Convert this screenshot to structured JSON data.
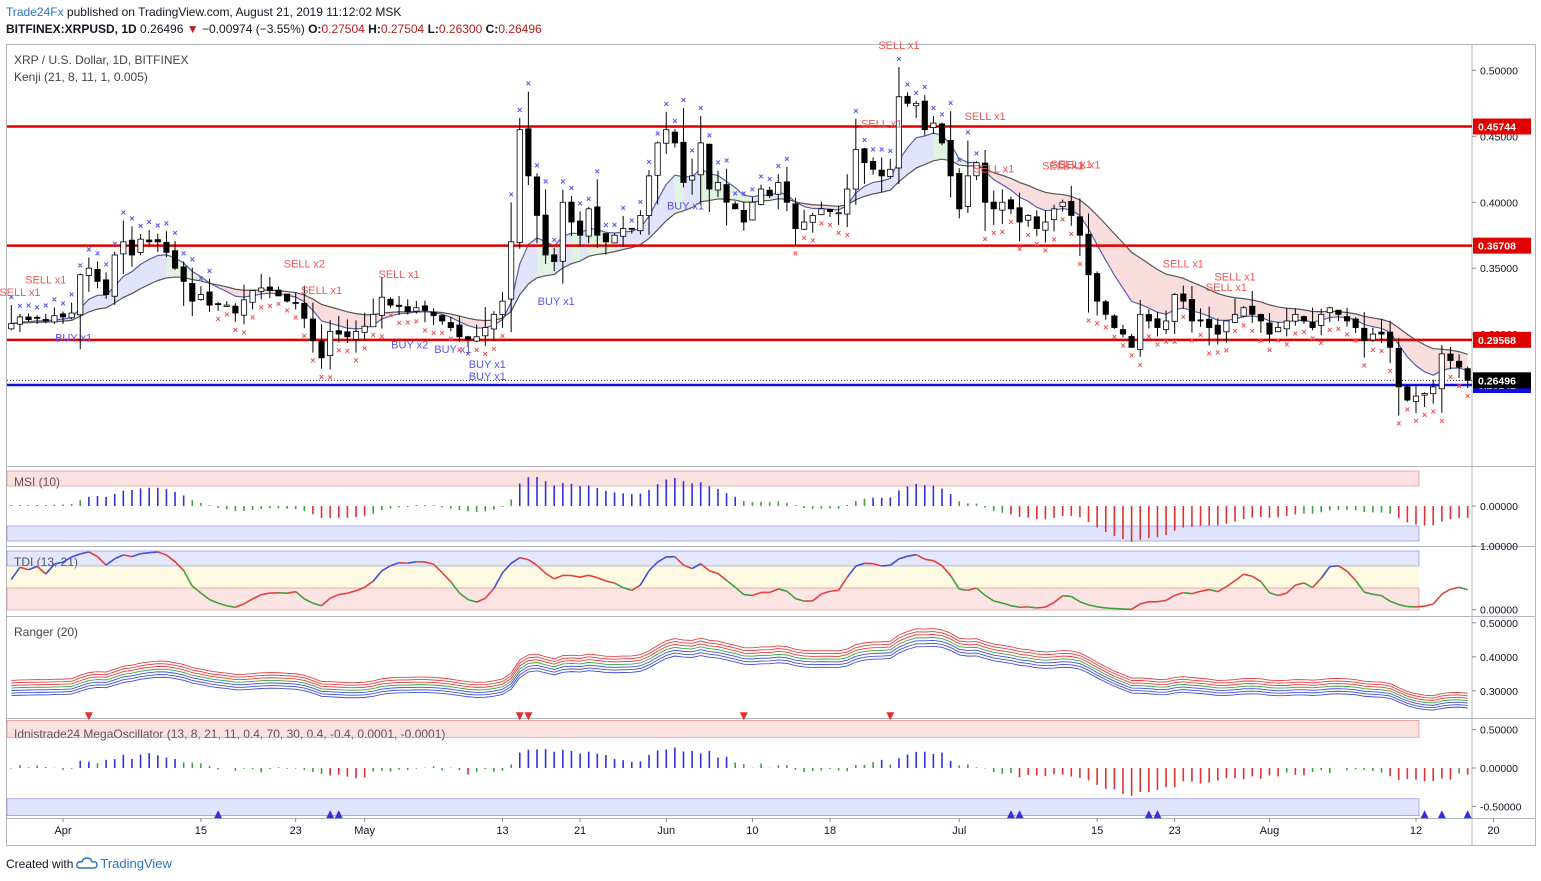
{
  "header": {
    "brand": "Trade24Fx",
    "published": " published on TradingView.com, August 21, 2019 11:12:02 MSK",
    "symbol": "BITFINEX:XRPUSD, 1D",
    "last": "0.26496",
    "change": "−0.00974 (−3.55%)",
    "o_label": "O:",
    "o": "0.27504",
    "h_label": "H:",
    "h": "0.27504",
    "l_label": "L:",
    "l": "0.26300",
    "c_label": "C:",
    "c": "0.26496"
  },
  "footer": {
    "created": "Created with",
    "tv": "TradingView"
  },
  "colors": {
    "up": "#ffffff",
    "down": "#000000",
    "level": "#e00000",
    "support": "#1010e0",
    "buy": "#5555ee",
    "sell": "#ee5555",
    "fast_ma": "#5560a8",
    "slow_ma": "#555555"
  },
  "chart_data": [
    {
      "type": "candlestick",
      "title": "XRP / U.S. Dollar, 1D, BITFINEX",
      "indicator": "Kenji (21, 8, 11, 1, 0.005)",
      "x_ticks": [
        "Apr",
        "15",
        "23",
        "May",
        "13",
        "21",
        "Jun",
        "10",
        "18",
        "Jul",
        "15",
        "23",
        "Aug",
        "12",
        "20"
      ],
      "ylim": [
        0.2,
        0.52
      ],
      "y_ticks": [
        0.5,
        0.45,
        0.4,
        0.35,
        0.3
      ],
      "y_tick_labels": [
        "0.50000",
        "0.45000",
        "0.40000",
        "0.35000",
        "0.30000"
      ],
      "levels": [
        {
          "value": 0.45744,
          "label": "0.45744",
          "kind": "resistance"
        },
        {
          "value": 0.36708,
          "label": "0.36708",
          "kind": "resistance"
        },
        {
          "value": 0.29568,
          "label": "0.29568",
          "kind": "resistance"
        },
        {
          "value": 0.26141,
          "label": "0.26141",
          "kind": "support"
        }
      ],
      "last_price": {
        "value": 0.26496,
        "label": "0.26496"
      },
      "closes": [
        0.308,
        0.313,
        0.311,
        0.312,
        0.31,
        0.314,
        0.313,
        0.316,
        0.345,
        0.35,
        0.34,
        0.33,
        0.36,
        0.37,
        0.36,
        0.372,
        0.37,
        0.37,
        0.362,
        0.35,
        0.34,
        0.325,
        0.33,
        0.322,
        0.323,
        0.322,
        0.316,
        0.326,
        0.333,
        0.335,
        0.333,
        0.329,
        0.325,
        0.324,
        0.312,
        0.295,
        0.282,
        0.302,
        0.3,
        0.298,
        0.302,
        0.306,
        0.315,
        0.328,
        0.322,
        0.321,
        0.317,
        0.32,
        0.318,
        0.314,
        0.31,
        0.305,
        0.298,
        0.296,
        0.298,
        0.305,
        0.315,
        0.325,
        0.37,
        0.455,
        0.42,
        0.39,
        0.36,
        0.355,
        0.4,
        0.385,
        0.375,
        0.395,
        0.375,
        0.37,
        0.375,
        0.38,
        0.38,
        0.39,
        0.42,
        0.445,
        0.455,
        0.445,
        0.415,
        0.42,
        0.445,
        0.41,
        0.415,
        0.4,
        0.395,
        0.385,
        0.4,
        0.41,
        0.405,
        0.415,
        0.4,
        0.38,
        0.385,
        0.39,
        0.395,
        0.393,
        0.392,
        0.41,
        0.44,
        0.43,
        0.425,
        0.42,
        0.425,
        0.48,
        0.475,
        0.475,
        0.455,
        0.46,
        0.445,
        0.42,
        0.395,
        0.42,
        0.43,
        0.4,
        0.395,
        0.4,
        0.395,
        0.385,
        0.39,
        0.38,
        0.385,
        0.395,
        0.4,
        0.39,
        0.375,
        0.345,
        0.325,
        0.315,
        0.305,
        0.3,
        0.29,
        0.315,
        0.31,
        0.305,
        0.31,
        0.33,
        0.325,
        0.31,
        0.31,
        0.305,
        0.3,
        0.31,
        0.315,
        0.32,
        0.315,
        0.31,
        0.3,
        0.305,
        0.31,
        0.315,
        0.31,
        0.305,
        0.315,
        0.32,
        0.315,
        0.31,
        0.305,
        0.295,
        0.3,
        0.3,
        0.29,
        0.26,
        0.25,
        0.253,
        0.255,
        0.26,
        0.285,
        0.28,
        0.275,
        0.265
      ],
      "buy_signals": [
        {
          "day": 7,
          "label": "BUY x1"
        },
        {
          "day": 46,
          "label": "BUY x2"
        },
        {
          "day": 51,
          "label": "BUY x1"
        },
        {
          "day": 55,
          "label": "BUY x1"
        },
        {
          "day": 55,
          "label": "BUY x1"
        },
        {
          "day": 63,
          "label": "BUY x1"
        },
        {
          "day": 78,
          "label": "BUY x1"
        }
      ],
      "sell_signals": [
        {
          "day": 1,
          "label": "SELL x1"
        },
        {
          "day": 4,
          "label": "SELL x1"
        },
        {
          "day": 34,
          "label": "SELL x2"
        },
        {
          "day": 36,
          "label": "SELL x1"
        },
        {
          "day": 45,
          "label": "SELL x1"
        },
        {
          "day": 101,
          "label": "SELL x1"
        },
        {
          "day": 103,
          "label": "SELL x1"
        },
        {
          "day": 113,
          "label": "SELL x1"
        },
        {
          "day": 114,
          "label": "SELL x1"
        },
        {
          "day": 122,
          "label": "SELL x1"
        },
        {
          "day": 123,
          "label": "SELL x1"
        },
        {
          "day": 124,
          "label": "SELL x1"
        },
        {
          "day": 136,
          "label": "SELL x1"
        },
        {
          "day": 141,
          "label": "SELL x1"
        },
        {
          "day": 142,
          "label": "SELL x1"
        }
      ]
    },
    {
      "type": "bar",
      "title": "MSI (10)",
      "ylim": [
        -0.05,
        0.05
      ],
      "y_ticks": [
        0
      ],
      "y_tick_labels": [
        "0.00000"
      ]
    },
    {
      "type": "line",
      "title": "TDI (13, 21)",
      "ylim": [
        -0.1,
        1.0
      ],
      "y_ticks": [
        1.0,
        0.0
      ],
      "y_tick_labels": [
        "1.00000",
        "0.00000"
      ]
    },
    {
      "type": "line",
      "title": "Ranger (20)",
      "ylim": [
        0.22,
        0.52
      ],
      "y_ticks": [
        0.5,
        0.4,
        0.3
      ],
      "y_tick_labels": [
        "0.50000",
        "0.40000",
        "0.30000"
      ]
    },
    {
      "type": "bar",
      "title": "Idnistrade24 MegaOscillator (13, 8, 21, 11, 0.4, 70, 30, 0.4, -0.4, 0.0001, -0.0001)",
      "ylim": [
        -0.65,
        0.65
      ],
      "y_ticks": [
        0.5,
        0.0,
        -0.5
      ],
      "y_tick_labels": [
        "0.50000",
        "0.00000",
        "-0.50000"
      ]
    }
  ]
}
